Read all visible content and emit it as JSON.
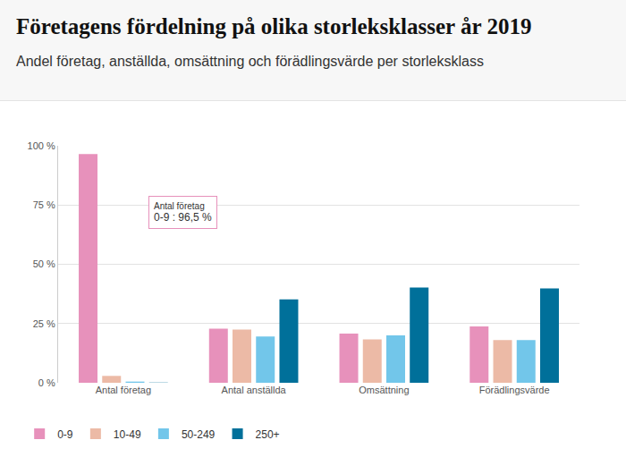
{
  "chart_data": {
    "type": "bar",
    "title": "Företagens fördelning på olika storleksklasser år 2019",
    "subtitle": "Andel företag, anställda, omsättning och förädlingsvärde per storleksklass",
    "categories": [
      "Antal företag",
      "Antal anställda",
      "Omsättning",
      "Förädlingsvärde"
    ],
    "series": [
      {
        "name": "0-9",
        "color": "#e791bb",
        "values": [
          96.5,
          22.8,
          20.8,
          23.8
        ]
      },
      {
        "name": "10-49",
        "color": "#ecbaa6",
        "values": [
          2.9,
          22.5,
          18.3,
          18.0
        ]
      },
      {
        "name": "50-249",
        "color": "#72c6ea",
        "values": [
          0.5,
          19.5,
          20.0,
          18.0
        ]
      },
      {
        "name": "250+",
        "color": "#00709a",
        "values": [
          0.1,
          35.2,
          40.2,
          39.8
        ]
      }
    ],
    "ylim": [
      0,
      100
    ],
    "yticks": [
      {
        "value": 0,
        "label": "0 %"
      },
      {
        "value": 25,
        "label": "25 %"
      },
      {
        "value": 50,
        "label": "50 %"
      },
      {
        "value": 75,
        "label": "75 %"
      },
      {
        "value": 100,
        "label": "100 %"
      }
    ],
    "grid": true,
    "legend": "bottom-left",
    "annotations": [
      {
        "category": "Antal företag",
        "text": "Antal företag",
        "label": "0-9 : 96,5 %"
      }
    ]
  }
}
